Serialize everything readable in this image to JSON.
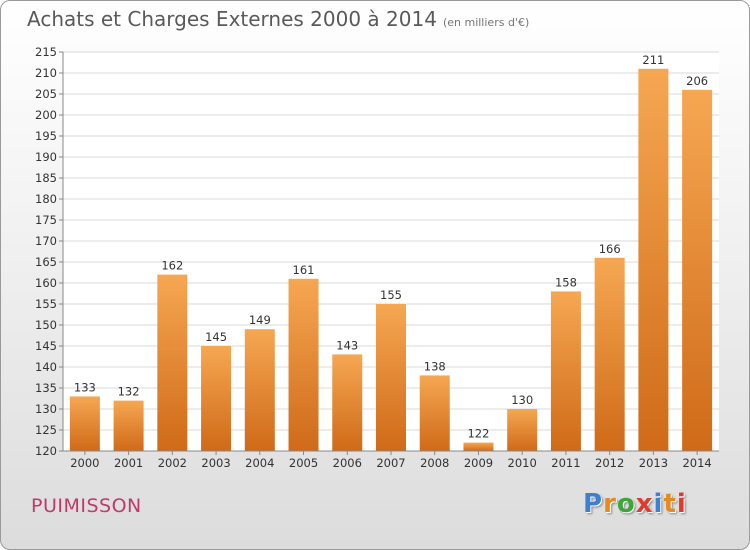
{
  "header": {
    "title": "Achats et Charges Externes 2000 à 2014",
    "subtitle": "(en milliers d'€)"
  },
  "footer": {
    "town": "PUIMISSON",
    "logo_letters": [
      "P",
      "r",
      "o",
      "x",
      "i",
      "t",
      "i"
    ],
    "logo_colors": [
      "#3f7fd0",
      "#e48a1e",
      "#3aa835",
      "#e23a2a",
      "#3f7fd0",
      "#e48a1e",
      "#e23a2a"
    ]
  },
  "colors": {
    "bar_top": "#f6a752",
    "bar_bottom": "#cf6a18",
    "grid": "#d8d8d8",
    "axis": "#888888"
  },
  "chart_data": {
    "type": "bar",
    "categories": [
      "2000",
      "2001",
      "2002",
      "2003",
      "2004",
      "2005",
      "2006",
      "2007",
      "2008",
      "2009",
      "2010",
      "2011",
      "2012",
      "2013",
      "2014"
    ],
    "values": [
      133,
      132,
      162,
      145,
      149,
      161,
      143,
      155,
      138,
      122,
      130,
      158,
      166,
      211,
      206
    ],
    "data_labels": [
      "133",
      "132",
      "162",
      "145",
      "149",
      "161",
      "143",
      "155",
      "138",
      "122",
      "130",
      "158",
      "166",
      "211",
      "206"
    ],
    "ylim": [
      120,
      215
    ],
    "yticks": [
      "120",
      "125",
      "130",
      "135",
      "140",
      "145",
      "150",
      "155",
      "160",
      "165",
      "170",
      "175",
      "180",
      "185",
      "190",
      "195",
      "200",
      "205",
      "210",
      "215"
    ],
    "title": "Achats et Charges Externes 2000 à 2014",
    "xlabel": "",
    "ylabel": "",
    "grid": true
  }
}
